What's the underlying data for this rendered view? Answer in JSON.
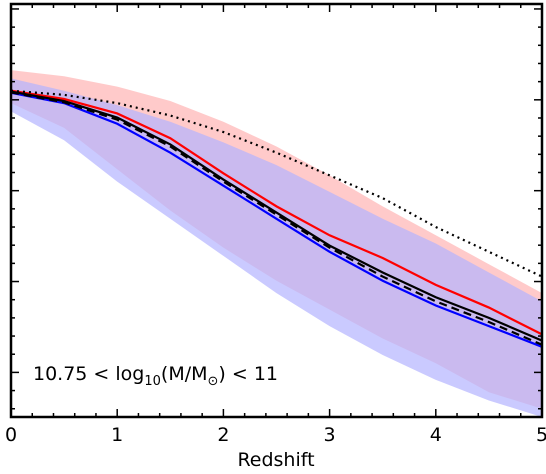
{
  "chart_data": {
    "type": "line",
    "xlabel": "Redshift",
    "ylabel": "",
    "xlim": [
      0,
      5
    ],
    "ylim": [
      0,
      1
    ],
    "x_ticks": [
      0,
      1,
      2,
      3,
      4,
      5
    ],
    "x_tick_labels": [
      "0",
      "1",
      "2",
      "3",
      "4",
      "5"
    ],
    "grid": false,
    "annotation": {
      "prefix": "10.75 < log",
      "sub": "10",
      "mid": "(M/M",
      "sun_symbol": "⊙",
      "suffix": ") < 11"
    },
    "bands": [
      {
        "color": "#ffb3b3",
        "opacity": 0.7,
        "x": [
          0,
          0.5,
          1,
          1.5,
          2,
          2.5,
          3,
          3.5,
          4,
          4.5,
          5
        ],
        "upper": [
          0.84,
          0.825,
          0.8,
          0.765,
          0.715,
          0.655,
          0.585,
          0.51,
          0.44,
          0.37,
          0.3
        ],
        "lower": [
          0.76,
          0.7,
          0.6,
          0.5,
          0.41,
          0.33,
          0.26,
          0.19,
          0.13,
          0.06,
          0.02
        ]
      },
      {
        "color": "#b3b3ff",
        "opacity": 0.7,
        "x": [
          0,
          0.5,
          1,
          1.5,
          2,
          2.5,
          3,
          3.5,
          4,
          4.5,
          5
        ],
        "upper": [
          0.82,
          0.79,
          0.755,
          0.715,
          0.665,
          0.61,
          0.545,
          0.48,
          0.42,
          0.35,
          0.28
        ],
        "lower": [
          0.74,
          0.67,
          0.57,
          0.48,
          0.39,
          0.3,
          0.22,
          0.15,
          0.09,
          0.04,
          0.0
        ]
      }
    ],
    "series": [
      {
        "color": "#ff0000",
        "dash": "",
        "x": [
          0,
          0.5,
          1,
          1.5,
          2,
          2.5,
          3,
          3.5,
          4,
          4.5,
          5
        ],
        "values": [
          0.79,
          0.77,
          0.735,
          0.675,
          0.59,
          0.51,
          0.44,
          0.385,
          0.32,
          0.265,
          0.2
        ]
      },
      {
        "color": "#0000ff",
        "dash": "",
        "x": [
          0,
          0.5,
          1,
          1.5,
          2,
          2.5,
          3,
          3.5,
          4,
          4.5,
          5
        ],
        "values": [
          0.785,
          0.76,
          0.71,
          0.64,
          0.56,
          0.48,
          0.4,
          0.33,
          0.27,
          0.22,
          0.17
        ]
      },
      {
        "color": "#000000",
        "dash": "",
        "x": [
          0,
          0.5,
          1,
          1.5,
          2,
          2.5,
          3,
          3.5,
          4,
          4.5,
          5
        ],
        "values": [
          0.788,
          0.765,
          0.725,
          0.66,
          0.575,
          0.495,
          0.415,
          0.35,
          0.29,
          0.24,
          0.185
        ]
      },
      {
        "color": "#000000",
        "dash": "8,5",
        "x": [
          0,
          0.5,
          1,
          1.5,
          2,
          2.5,
          3,
          3.5,
          4,
          4.5,
          5
        ],
        "values": [
          0.786,
          0.762,
          0.72,
          0.655,
          0.57,
          0.49,
          0.41,
          0.34,
          0.28,
          0.23,
          0.175
        ]
      },
      {
        "color": "#000000",
        "dash": "2,4",
        "x": [
          0,
          0.5,
          1,
          1.5,
          2,
          2.5,
          3,
          3.5,
          4,
          4.5,
          5
        ],
        "values": [
          0.79,
          0.78,
          0.76,
          0.73,
          0.69,
          0.64,
          0.585,
          0.53,
          0.46,
          0.4,
          0.34
        ]
      }
    ]
  }
}
